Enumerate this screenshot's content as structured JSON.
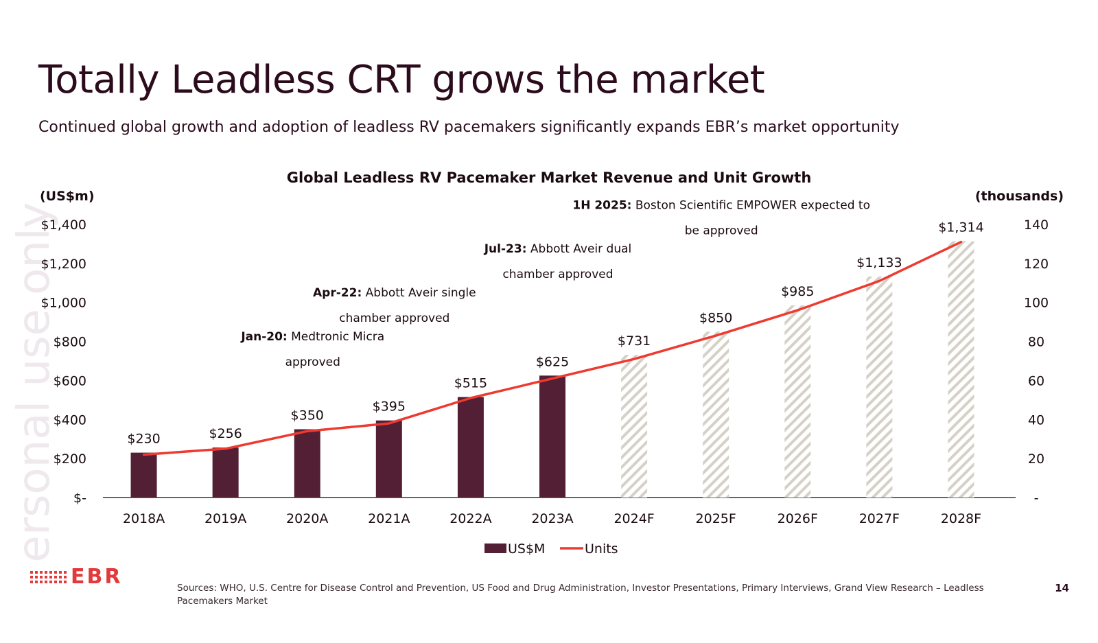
{
  "slide": {
    "title": "Totally Leadless CRT grows the market",
    "subtitle": "Continued global growth and adoption of leadless RV pacemakers significantly expands EBR’s market opportunity",
    "watermark": "ersonal use only",
    "sources": "Sources: WHO, U.S. Centre for Disease Control and Prevention,  US Food and Drug Administration, Investor Presentations, Primary Interviews, Grand View Research – Leadless Pacemakers Market",
    "page_number": "14",
    "logo_text": "EBR"
  },
  "colors": {
    "bar": "#521f35",
    "forecast_stripe": "#d6d1c6",
    "line": "#ee3a30",
    "axis": "#333333",
    "brand": "#e23a3a"
  },
  "chart_data": {
    "type": "bar",
    "title": "Global Leadless RV Pacemaker Market Revenue and Unit Growth",
    "ylabel": "(US$m)",
    "y2label": "(thousands)",
    "categories": [
      "2018A",
      "2019A",
      "2020A",
      "2021A",
      "2022A",
      "2023A",
      "2024F",
      "2025F",
      "2026F",
      "2027F",
      "2028F"
    ],
    "ylim": [
      0,
      1400
    ],
    "y2lim": [
      0,
      140
    ],
    "y_ticks": [
      0,
      200,
      400,
      600,
      800,
      1000,
      1200,
      1400
    ],
    "y_tick_labels": [
      "$-",
      "$200",
      "$400",
      "$600",
      "$800",
      "$1,000",
      "$1,200",
      "$1,400"
    ],
    "y2_ticks": [
      0,
      20,
      40,
      60,
      80,
      100,
      120,
      140
    ],
    "y2_tick_labels": [
      "-",
      "20",
      "40",
      "60",
      "80",
      "100",
      "120",
      "140"
    ],
    "series": [
      {
        "name": "US$M",
        "type": "bar",
        "values": [
          230,
          256,
          350,
          395,
          515,
          625,
          731,
          850,
          985,
          1133,
          1314
        ],
        "labels": [
          "$230",
          "$256",
          "$350",
          "$395",
          "$515",
          "$625",
          "$731",
          "$850",
          "$985",
          "$1,133",
          "$1,314"
        ],
        "forecast": [
          false,
          false,
          false,
          false,
          false,
          false,
          true,
          true,
          true,
          true,
          true
        ]
      },
      {
        "name": "Units",
        "type": "line",
        "axis": "secondary",
        "values": [
          22,
          25,
          34,
          38,
          51,
          61,
          71,
          83,
          96,
          111,
          131
        ]
      }
    ],
    "annotations": [
      {
        "category": "2020A",
        "bold": "Jan-20:",
        "text": " Medtronic Micra",
        "line2": "approved",
        "level": 805
      },
      {
        "category": "2021A",
        "bold": "Apr-22:",
        "text": " Abbott Aveir single",
        "line2": "chamber approved",
        "level": 1030
      },
      {
        "category": "2023A",
        "bold": "Jul-23:",
        "text": " Abbott Aveir dual",
        "line2": "chamber approved",
        "level": 1255
      },
      {
        "category": "2025F",
        "bold": "1H 2025:",
        "text": " Boston Scientific EMPOWER expected to",
        "line2": "be approved",
        "level": 1480
      }
    ],
    "legend": [
      "US$M",
      "Units"
    ],
    "legend_position": "bottom-center"
  }
}
